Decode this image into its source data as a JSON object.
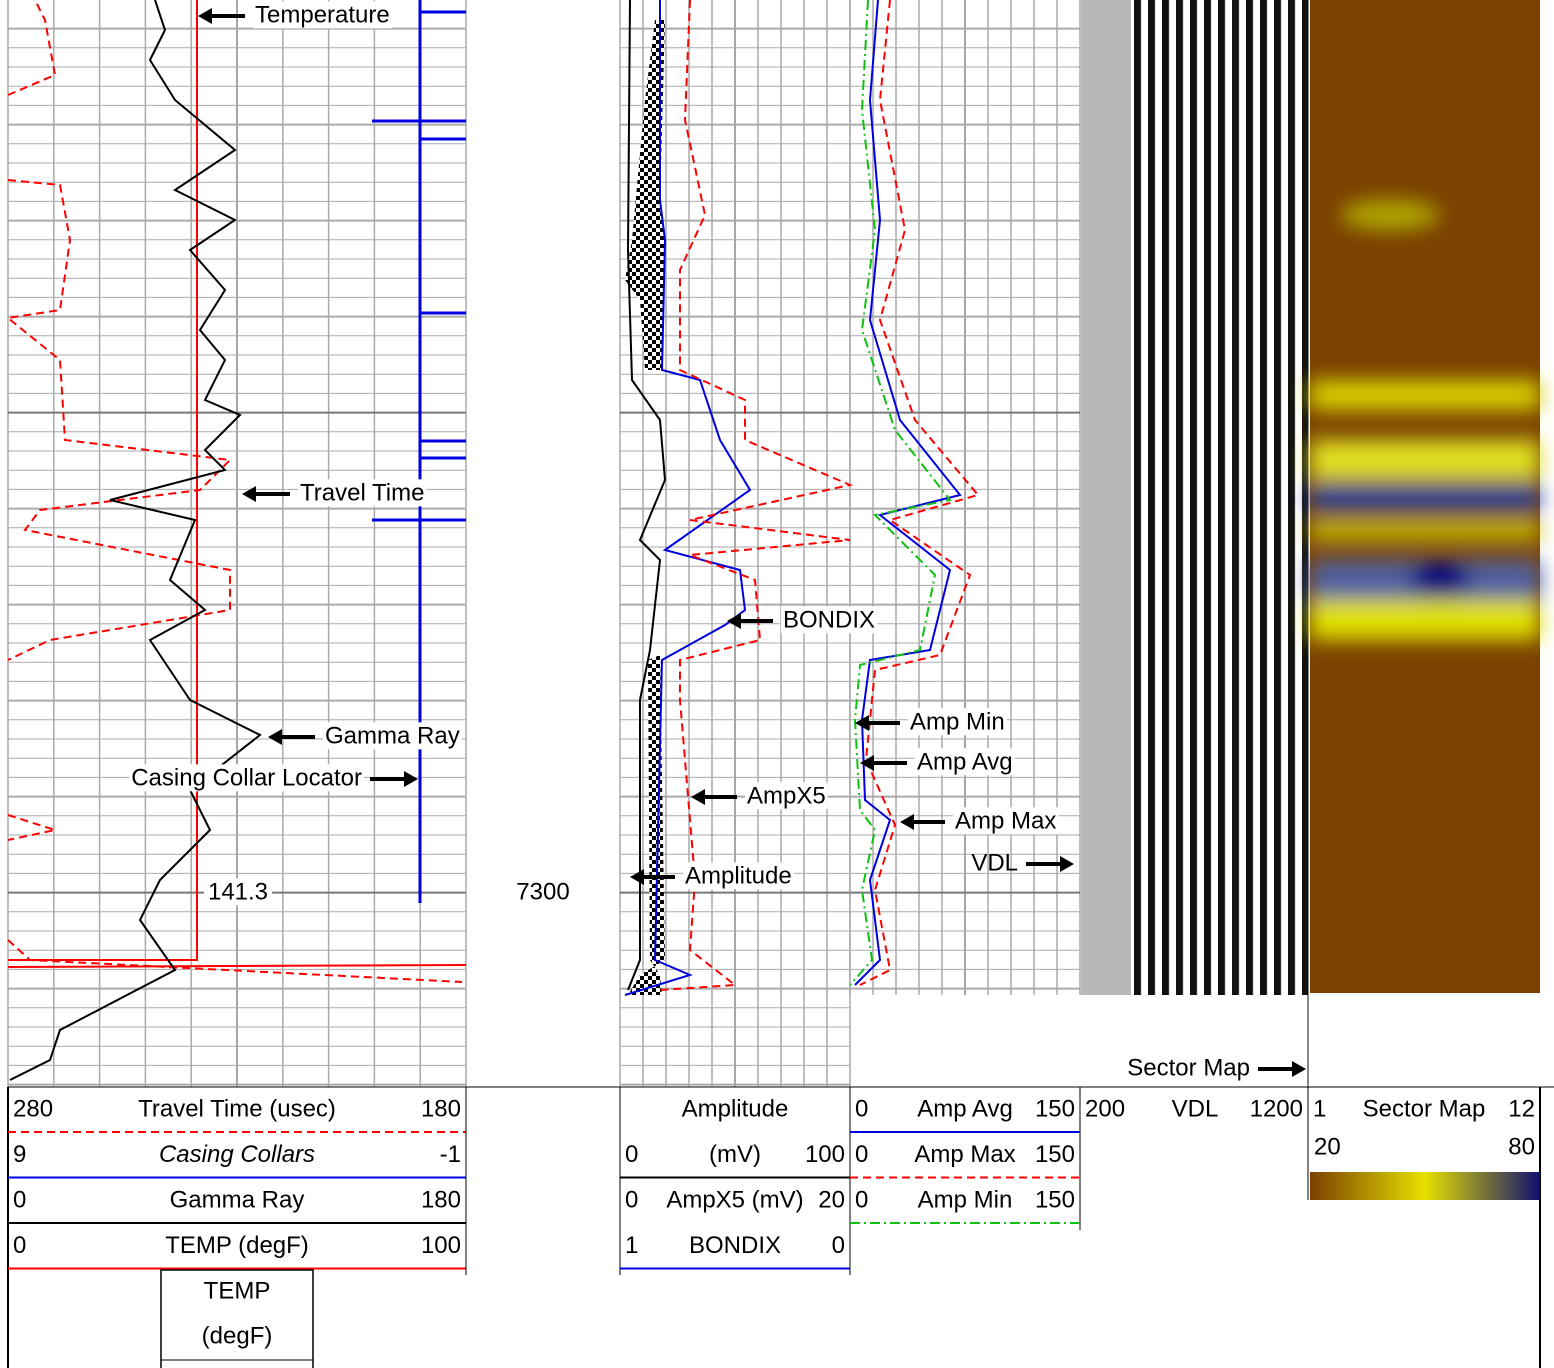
{
  "annotations": {
    "temperature": "Temperature",
    "travel_time": "Travel Time",
    "gamma_ray": "Gamma Ray",
    "casing_collar_locator": "Casing Collar Locator",
    "bondix": "BONDIX",
    "ampx5": "AmpX5",
    "amplitude": "Amplitude",
    "amp_min": "Amp Min",
    "amp_avg": "Amp Avg",
    "amp_max": "Amp Max",
    "vdl": "VDL",
    "sector_map": "Sector Map"
  },
  "temp_readout": "141.3",
  "depth": "7300",
  "header": {
    "track1": [
      [
        "280",
        "Travel Time (usec)",
        "180"
      ],
      [
        "9",
        "Casing Collars",
        "-1"
      ],
      [
        "0",
        "Gamma Ray",
        "180"
      ],
      [
        "0",
        "TEMP (degF)",
        "100"
      ]
    ],
    "temp_box": [
      "TEMP",
      "(degF)"
    ],
    "track2": {
      "title": "Amplitude",
      "rows": [
        [
          "0",
          "(mV)",
          "100"
        ],
        [
          "0",
          "AmpX5 (mV)",
          "20"
        ],
        [
          "1",
          "BONDIX",
          "0"
        ]
      ]
    },
    "track3": [
      [
        "0",
        "Amp Avg",
        "150"
      ],
      [
        "0",
        "Amp Max",
        "150"
      ],
      [
        "0",
        "Amp Min",
        "150"
      ]
    ],
    "vdl": [
      "200",
      "VDL",
      "1200"
    ],
    "sector_map": [
      "1",
      "Sector Map",
      "12"
    ],
    "sector_scale": [
      "20",
      "80"
    ]
  }
}
